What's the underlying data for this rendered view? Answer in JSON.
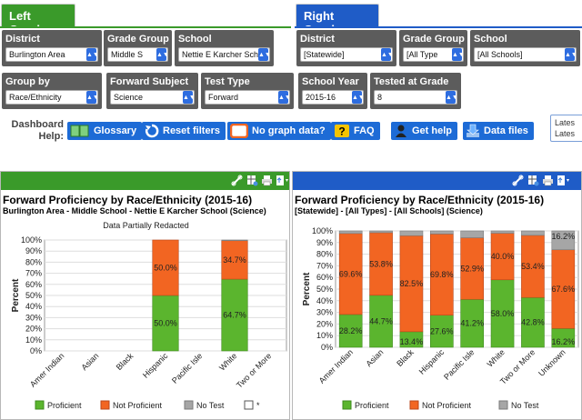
{
  "left_tab": "Left Graph",
  "right_tab": "Right Graph",
  "filters": {
    "left_row1": [
      {
        "label": "District",
        "value": "Burlington Area"
      },
      {
        "label": "Grade Group",
        "value": "Middle S"
      },
      {
        "label": "School",
        "value": "Nettie E Karcher Sch"
      }
    ],
    "right_row1": [
      {
        "label": "District",
        "value": "[Statewide]"
      },
      {
        "label": "Grade Group",
        "value": "[All Type"
      },
      {
        "label": "School",
        "value": "[All Schools]"
      }
    ],
    "row2": [
      {
        "label": "Group by",
        "value": "Race/Ethnicity"
      },
      {
        "label": "Forward Subject",
        "value": "Science"
      },
      {
        "label": "Test Type",
        "value": "Forward"
      },
      {
        "label": "School Year",
        "value": "2015-16"
      },
      {
        "label": "Tested at Grade",
        "value": "8"
      }
    ]
  },
  "help": {
    "label_line1": "Dashboard",
    "label_line2": "Help:",
    "buttons": [
      "Glossary",
      "Reset filters",
      "No graph data?",
      "FAQ",
      "Get help",
      "Data files"
    ]
  },
  "latest": [
    "Lates",
    "Lates"
  ],
  "colors": {
    "green": "#3a9a2a",
    "blue": "#1f5cc7",
    "proficient": "#5bb52e",
    "notproficient": "#f26522",
    "notest": "#a6a6a6"
  },
  "left_panel": {
    "title": "Forward Proficiency by Race/Ethnicity (2015-16)",
    "subtitle": "Burlington Area - Middle School - Nettie E Karcher School (Science)",
    "note": "Data Partially Redacted",
    "legend": [
      "Proficient",
      "Not Proficient",
      "No Test",
      "*"
    ]
  },
  "right_panel": {
    "title": "Forward Proficiency by Race/Ethnicity (2015-16)",
    "subtitle": "[Statewide] - [All Types] - [All Schools] (Science)",
    "legend": [
      "Proficient",
      "Not Proficient",
      "No Test"
    ]
  },
  "chart_data": [
    {
      "type": "bar",
      "stacked": true,
      "title": "Forward Proficiency by Race/Ethnicity (2015-16)",
      "ylabel": "Percent",
      "yticks": [
        "0%",
        "10%",
        "20%",
        "30%",
        "40%",
        "50%",
        "60%",
        "70%",
        "80%",
        "90%",
        "100%"
      ],
      "ylim": [
        0,
        100
      ],
      "categories": [
        "Amer Indian",
        "Asian",
        "Black",
        "Hispanic",
        "Pacific Isle",
        "White",
        "Two or More"
      ],
      "series": [
        {
          "name": "Proficient",
          "values": [
            null,
            null,
            null,
            50.0,
            null,
            64.7,
            null
          ],
          "labels": [
            "",
            "",
            "",
            "50.0%",
            "",
            "64.7%",
            ""
          ]
        },
        {
          "name": "Not Proficient",
          "values": [
            null,
            null,
            null,
            50.0,
            null,
            34.7,
            null
          ],
          "labels": [
            "",
            "",
            "",
            "50.0%",
            "",
            "34.7%",
            ""
          ]
        },
        {
          "name": "No Test",
          "values": [
            null,
            null,
            null,
            0,
            null,
            0.6,
            null
          ],
          "labels": [
            "",
            "",
            "",
            "",
            "",
            "",
            ""
          ]
        }
      ]
    },
    {
      "type": "bar",
      "stacked": true,
      "title": "Forward Proficiency by Race/Ethnicity (2015-16)",
      "ylabel": "Percent",
      "yticks": [
        "0%",
        "10%",
        "20%",
        "30%",
        "40%",
        "50%",
        "60%",
        "70%",
        "80%",
        "90%",
        "100%"
      ],
      "ylim": [
        0,
        100
      ],
      "categories": [
        "Amer Indian",
        "Asian",
        "Black",
        "Hispanic",
        "Pacific Isle",
        "White",
        "Two or More",
        "Unknown"
      ],
      "series": [
        {
          "name": "Proficient",
          "values": [
            28.2,
            44.7,
            13.4,
            27.6,
            41.2,
            58.0,
            42.8,
            16.2
          ],
          "labels": [
            "28.2%",
            "44.7%",
            "13.4%",
            "27.6%",
            "41.2%",
            "58.0%",
            "42.8%",
            "16.2%"
          ]
        },
        {
          "name": "Not Proficient",
          "values": [
            69.6,
            53.8,
            82.5,
            69.8,
            52.9,
            40.0,
            53.4,
            67.6
          ],
          "labels": [
            "69.6%",
            "53.8%",
            "82.5%",
            "69.8%",
            "52.9%",
            "40.0%",
            "53.4%",
            "67.6%"
          ]
        },
        {
          "name": "No Test",
          "values": [
            2.2,
            1.5,
            4.1,
            2.6,
            5.9,
            2.0,
            3.8,
            16.2
          ],
          "labels": [
            "",
            "",
            "",
            "",
            "",
            "",
            "",
            "16.2%"
          ]
        }
      ]
    }
  ]
}
